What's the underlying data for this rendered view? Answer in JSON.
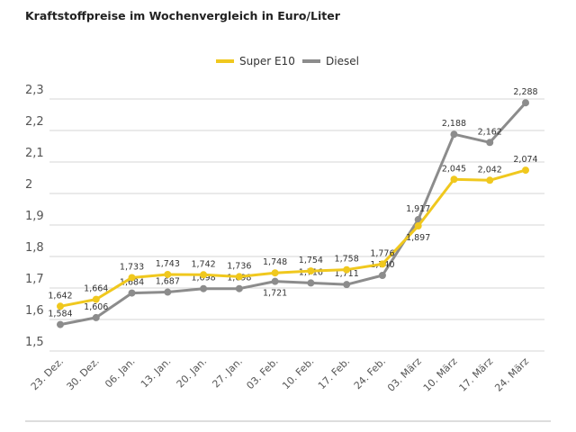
{
  "chart_data": {
    "type": "line",
    "title": "Kraftstoffpreise im Wochenvergleich in Euro/Liter",
    "categories": [
      "23. Dez.",
      "30. Dez.",
      "06. Jan.",
      "13. Jan.",
      "20. Jan.",
      "27. Jan.",
      "03. Feb.",
      "10. Feb.",
      "17. Feb.",
      "24. Feb.",
      "03. März",
      "10. März",
      "17. März",
      "24. März"
    ],
    "series": [
      {
        "name": "Super E10",
        "color": "#f0c81e",
        "values": [
          1.642,
          1.664,
          1.733,
          1.743,
          1.742,
          1.736,
          1.748,
          1.754,
          1.758,
          1.776,
          1.897,
          2.045,
          2.042,
          2.074
        ],
        "labels": [
          "1,642",
          "1,664",
          "1,733",
          "1,743",
          "1,742",
          "1,736",
          "1,748",
          "1,754",
          "1,758",
          "1,776",
          "1,897",
          "2,045",
          "2,042",
          "2,074"
        ]
      },
      {
        "name": "Diesel",
        "color": "#8c8c8c",
        "values": [
          1.584,
          1.606,
          1.684,
          1.687,
          1.698,
          1.698,
          1.721,
          1.716,
          1.711,
          1.74,
          1.917,
          2.188,
          2.162,
          2.288
        ],
        "labels": [
          "1,584",
          "1,606",
          "1,684",
          "1,687",
          "1,698",
          "1,698",
          "1,721",
          "1,716",
          "1,711",
          "1,740",
          "1,917",
          "2,188",
          "2,162",
          "2,288"
        ]
      }
    ],
    "yticks": [
      "1,5",
      "1,6",
      "1,7",
      "1,8",
      "1,9",
      "2",
      "2,1",
      "2,2",
      "2,3"
    ],
    "ylim": [
      1.5,
      2.3
    ],
    "grid": true,
    "legend": "top-center",
    "xlabel": "",
    "ylabel": ""
  }
}
